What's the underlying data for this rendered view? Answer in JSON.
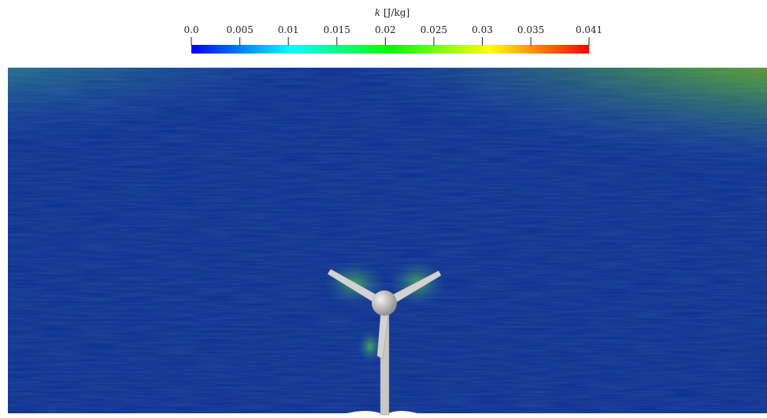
{
  "colorbar": {
    "variable": "k",
    "unit": "[J/kg]",
    "lim": [
      0,
      0.041
    ],
    "ticks": [
      {
        "value": 0,
        "label": "0.0"
      },
      0.005,
      0.01,
      0.015,
      0.02,
      0.025,
      0.03,
      0.035,
      0.041
    ],
    "colormap": [
      "#0000ff",
      "#0080ff",
      "#00ffff",
      "#00ff80",
      "#00ff00",
      "#80ff00",
      "#ffff00",
      "#ff8000",
      "#ff0000"
    ]
  }
}
